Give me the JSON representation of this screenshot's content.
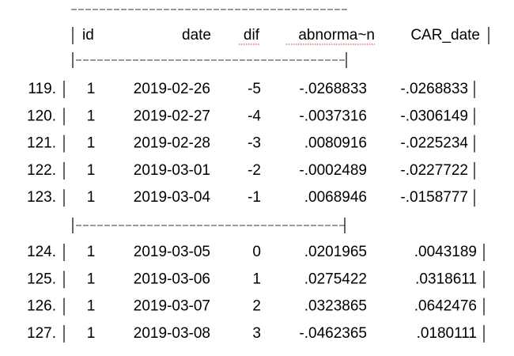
{
  "table": {
    "header": [
      "id",
      "date",
      "dif",
      "abnorma~n",
      "CAR_date"
    ],
    "groups": [
      {
        "rows": [
          {
            "obs": "119.",
            "cells": [
              "1",
              "2019-02-26",
              "-5",
              "-.0268833",
              "-.0268833"
            ]
          },
          {
            "obs": "120.",
            "cells": [
              "1",
              "2019-02-27",
              "-4",
              "-.0037316",
              "-.0306149"
            ]
          },
          {
            "obs": "121.",
            "cells": [
              "1",
              "2019-02-28",
              "-3",
              ".0080916",
              "-.0225234"
            ]
          },
          {
            "obs": "122.",
            "cells": [
              "1",
              "2019-03-01",
              "-2",
              "-.0002489",
              "-.0227722"
            ]
          },
          {
            "obs": "123.",
            "cells": [
              "1",
              "2019-03-04",
              "-1",
              ".0068946",
              "-.0158777"
            ]
          }
        ]
      },
      {
        "rows": [
          {
            "obs": "124.",
            "cells": [
              "1",
              "2019-03-05",
              "0",
              ".0201965",
              ".0043189"
            ]
          },
          {
            "obs": "125.",
            "cells": [
              "1",
              "2019-03-06",
              "1",
              ".0275422",
              ".0318611"
            ]
          },
          {
            "obs": "126.",
            "cells": [
              "1",
              "2019-03-07",
              "2",
              ".0323865",
              ".0642476"
            ]
          },
          {
            "obs": "127.",
            "cells": [
              "1",
              "2019-03-08",
              "3",
              "-.0462365",
              ".0180111"
            ]
          }
        ]
      }
    ]
  }
}
